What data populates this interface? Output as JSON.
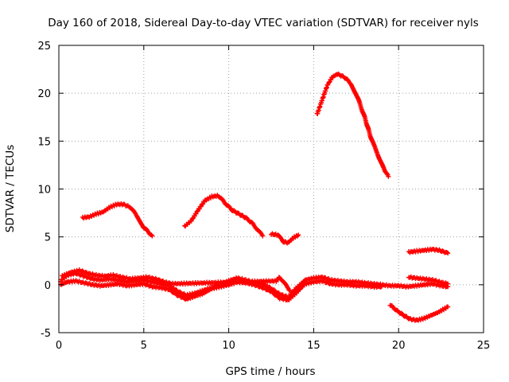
{
  "chart_data": {
    "type": "scatter",
    "title": "Day 160 of 2018, Sidereal Day-to-day VTEC variation (SDTVAR) for receiver nyls",
    "xlabel": "GPS time / hours",
    "ylabel": "SDTVAR / TECUs",
    "xlim": [
      0,
      25
    ],
    "ylim": [
      -5,
      25
    ],
    "xticks": [
      0,
      5,
      10,
      15,
      20,
      25
    ],
    "yticks": [
      -5,
      0,
      5,
      10,
      15,
      20,
      25
    ],
    "grid": true,
    "marker": "plus",
    "series_color": "#ff0000",
    "series": [
      {
        "name": "arc-1",
        "points": [
          [
            1.4,
            7.0
          ],
          [
            1.8,
            7.1
          ],
          [
            2.2,
            7.4
          ],
          [
            2.6,
            7.6
          ],
          [
            3.0,
            8.1
          ],
          [
            3.4,
            8.4
          ],
          [
            3.8,
            8.4
          ],
          [
            4.2,
            8.1
          ],
          [
            4.6,
            7.2
          ],
          [
            5.0,
            6.0
          ],
          [
            5.5,
            5.1
          ]
        ]
      },
      {
        "name": "arc-2",
        "points": [
          [
            7.4,
            6.1
          ],
          [
            7.8,
            6.7
          ],
          [
            8.2,
            7.8
          ],
          [
            8.6,
            8.8
          ],
          [
            9.0,
            9.2
          ],
          [
            9.4,
            9.3
          ],
          [
            9.8,
            8.5
          ],
          [
            10.2,
            7.8
          ],
          [
            10.6,
            7.4
          ],
          [
            11.0,
            7.0
          ],
          [
            11.4,
            6.4
          ],
          [
            12.0,
            5.1
          ]
        ]
      },
      {
        "name": "arc-3",
        "points": [
          [
            12.5,
            5.3
          ],
          [
            12.9,
            5.2
          ],
          [
            13.2,
            4.5
          ],
          [
            13.5,
            4.4
          ],
          [
            13.8,
            4.9
          ],
          [
            14.1,
            5.2
          ]
        ]
      },
      {
        "name": "arc-4",
        "points": [
          [
            15.2,
            17.8
          ],
          [
            15.5,
            19.3
          ],
          [
            15.8,
            20.8
          ],
          [
            16.1,
            21.7
          ],
          [
            16.4,
            22.0
          ],
          [
            16.8,
            21.7
          ],
          [
            17.2,
            21.0
          ],
          [
            17.6,
            19.5
          ],
          [
            18.0,
            17.5
          ],
          [
            18.4,
            15.2
          ],
          [
            18.8,
            13.5
          ],
          [
            19.2,
            11.8
          ],
          [
            19.4,
            11.3
          ]
        ]
      },
      {
        "name": "arc-5",
        "points": [
          [
            20.6,
            3.4
          ],
          [
            21.0,
            3.5
          ],
          [
            21.5,
            3.6
          ],
          [
            22.0,
            3.7
          ],
          [
            22.4,
            3.6
          ],
          [
            22.9,
            3.3
          ]
        ]
      },
      {
        "name": "arc-6",
        "points": [
          [
            19.5,
            -2.1
          ],
          [
            19.9,
            -2.7
          ],
          [
            20.3,
            -3.2
          ],
          [
            20.7,
            -3.6
          ],
          [
            21.1,
            -3.7
          ],
          [
            21.5,
            -3.5
          ],
          [
            21.9,
            -3.2
          ],
          [
            22.3,
            -2.9
          ],
          [
            22.6,
            -2.6
          ],
          [
            22.9,
            -2.3
          ]
        ]
      },
      {
        "name": "arc-7",
        "points": [
          [
            20.6,
            0.8
          ],
          [
            21.0,
            0.7
          ],
          [
            21.5,
            0.6
          ],
          [
            22.0,
            0.5
          ],
          [
            22.4,
            0.3
          ],
          [
            22.9,
            0.1
          ]
        ]
      },
      {
        "name": "arc-8",
        "points": [
          [
            0.1,
            0.4
          ],
          [
            0.5,
            1.0
          ],
          [
            1.0,
            1.2
          ],
          [
            1.5,
            0.9
          ],
          [
            2.0,
            0.6
          ],
          [
            2.5,
            0.5
          ],
          [
            3.0,
            0.6
          ],
          [
            3.5,
            0.5
          ],
          [
            4.0,
            0.3
          ],
          [
            4.5,
            0.4
          ],
          [
            5.0,
            0.5
          ],
          [
            5.5,
            0.3
          ],
          [
            6.0,
            0.1
          ],
          [
            6.5,
            -0.1
          ],
          [
            7.0,
            -0.7
          ],
          [
            7.5,
            -1.1
          ],
          [
            8.0,
            -0.9
          ],
          [
            8.5,
            -0.6
          ],
          [
            9.0,
            -0.3
          ],
          [
            9.5,
            0.1
          ],
          [
            10.0,
            0.4
          ],
          [
            10.5,
            0.7
          ],
          [
            11.0,
            0.5
          ],
          [
            11.5,
            0.2
          ],
          [
            12.0,
            0.1
          ],
          [
            12.5,
            -0.4
          ],
          [
            13.0,
            -1.0
          ],
          [
            13.5,
            -1.3
          ],
          [
            14.0,
            -0.3
          ],
          [
            14.5,
            0.5
          ],
          [
            15.0,
            0.7
          ],
          [
            15.5,
            0.8
          ],
          [
            16.0,
            0.5
          ],
          [
            16.5,
            0.4
          ],
          [
            17.0,
            0.3
          ],
          [
            17.5,
            0.3
          ],
          [
            18.0,
            0.2
          ],
          [
            18.5,
            0.1
          ],
          [
            19.0,
            0.0
          ],
          [
            19.5,
            -0.1
          ],
          [
            20.0,
            -0.1
          ],
          [
            20.5,
            -0.2
          ],
          [
            21.0,
            -0.1
          ],
          [
            21.5,
            0.0
          ],
          [
            22.0,
            0.1
          ],
          [
            22.5,
            -0.1
          ],
          [
            22.9,
            -0.2
          ]
        ]
      },
      {
        "name": "arc-9",
        "points": [
          [
            0.1,
            0.0
          ],
          [
            0.5,
            0.3
          ],
          [
            1.0,
            0.4
          ],
          [
            1.5,
            0.2
          ],
          [
            2.0,
            0.0
          ],
          [
            2.5,
            -0.1
          ],
          [
            3.0,
            0.0
          ],
          [
            3.5,
            0.1
          ],
          [
            4.0,
            -0.1
          ],
          [
            4.5,
            0.0
          ],
          [
            5.0,
            0.1
          ],
          [
            5.5,
            -0.2
          ],
          [
            6.0,
            -0.3
          ],
          [
            6.5,
            -0.5
          ],
          [
            7.0,
            -1.1
          ],
          [
            7.5,
            -1.5
          ],
          [
            8.0,
            -1.2
          ],
          [
            8.5,
            -0.9
          ],
          [
            9.0,
            -0.4
          ],
          [
            9.5,
            -0.2
          ],
          [
            10.0,
            0.0
          ],
          [
            10.5,
            0.3
          ],
          [
            11.0,
            0.2
          ],
          [
            11.5,
            0.0
          ],
          [
            12.0,
            -0.3
          ],
          [
            12.5,
            -0.7
          ],
          [
            13.0,
            -1.4
          ],
          [
            13.5,
            -1.6
          ],
          [
            14.0,
            -0.8
          ],
          [
            14.5,
            0.1
          ],
          [
            15.0,
            0.3
          ],
          [
            15.5,
            0.4
          ],
          [
            16.0,
            0.1
          ],
          [
            16.5,
            0.0
          ],
          [
            17.0,
            0.0
          ],
          [
            17.5,
            -0.1
          ],
          [
            18.0,
            -0.1
          ],
          [
            18.5,
            -0.2
          ],
          [
            19.0,
            -0.2
          ]
        ]
      },
      {
        "name": "arc-10",
        "points": [
          [
            0.2,
            0.9
          ],
          [
            0.7,
            1.3
          ],
          [
            1.2,
            1.5
          ],
          [
            1.7,
            1.2
          ],
          [
            2.2,
            1.0
          ],
          [
            2.7,
            0.9
          ],
          [
            3.2,
            1.0
          ],
          [
            3.7,
            0.8
          ],
          [
            4.2,
            0.6
          ],
          [
            4.7,
            0.7
          ],
          [
            5.2,
            0.8
          ],
          [
            5.7,
            0.6
          ],
          [
            6.2,
            0.3
          ],
          [
            6.7,
            0.1
          ],
          [
            12.8,
            0.4
          ],
          [
            13.0,
            0.8
          ],
          [
            13.3,
            0.1
          ],
          [
            13.6,
            -0.6
          ]
        ]
      }
    ]
  }
}
